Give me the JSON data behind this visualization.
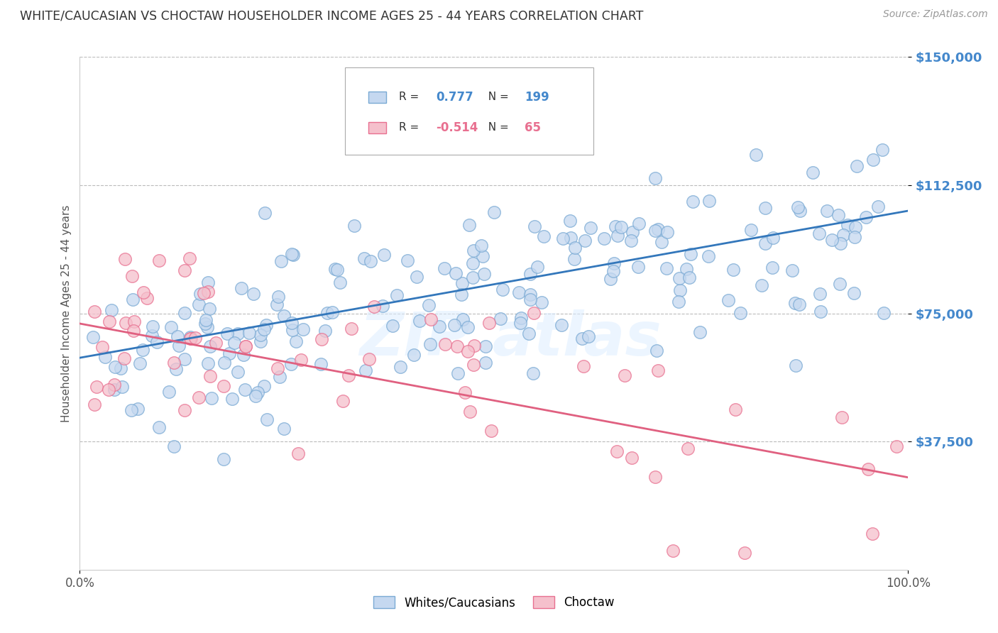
{
  "title": "WHITE/CAUCASIAN VS CHOCTAW HOUSEHOLDER INCOME AGES 25 - 44 YEARS CORRELATION CHART",
  "source_text": "Source: ZipAtlas.com",
  "ylabel": "Householder Income Ages 25 - 44 years",
  "xlim": [
    0,
    100
  ],
  "ylim": [
    0,
    150000
  ],
  "xtick_labels": [
    "0.0%",
    "100.0%"
  ],
  "xtick_positions": [
    0,
    100
  ],
  "ytick_labels": [
    "$37,500",
    "$75,000",
    "$112,500",
    "$150,000"
  ],
  "ytick_positions": [
    37500,
    75000,
    112500,
    150000
  ],
  "blue_R": 0.777,
  "blue_N": 199,
  "pink_R": -0.514,
  "pink_N": 65,
  "blue_fill_color": "#c5d8f0",
  "pink_fill_color": "#f5c0cc",
  "blue_edge_color": "#7aaad4",
  "pink_edge_color": "#e87090",
  "blue_line_color": "#3377bb",
  "pink_line_color": "#e06080",
  "legend_label_blue": "Whites/Caucasians",
  "legend_label_pink": "Choctaw",
  "watermark": "ZIP atlas",
  "title_color": "#333333",
  "axis_label_color": "#555555",
  "ytick_color": "#4488cc",
  "grid_color": "#bbbbbb",
  "background_color": "#ffffff",
  "blue_trend_x": [
    0,
    100
  ],
  "blue_trend_y": [
    62000,
    105000
  ],
  "pink_trend_x": [
    0,
    100
  ],
  "pink_trend_y": [
    72000,
    27000
  ]
}
